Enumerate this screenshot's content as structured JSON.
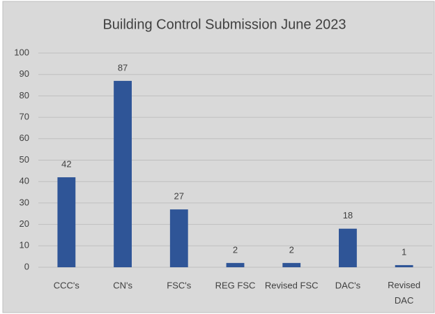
{
  "chart_data": {
    "type": "bar",
    "title": "Building Control Submission June 2023",
    "categories": [
      "CCC's",
      "CN's",
      "FSC's",
      "REG FSC",
      "Revised FSC",
      "DAC's",
      "Revised\nDAC"
    ],
    "values": [
      42,
      87,
      27,
      2,
      2,
      18,
      1
    ],
    "color": "#2f5597",
    "ylim": [
      0,
      100
    ],
    "yticks": [
      0,
      10,
      20,
      30,
      40,
      50,
      60,
      70,
      80,
      90,
      100
    ],
    "grid": true,
    "data_labels": true
  }
}
